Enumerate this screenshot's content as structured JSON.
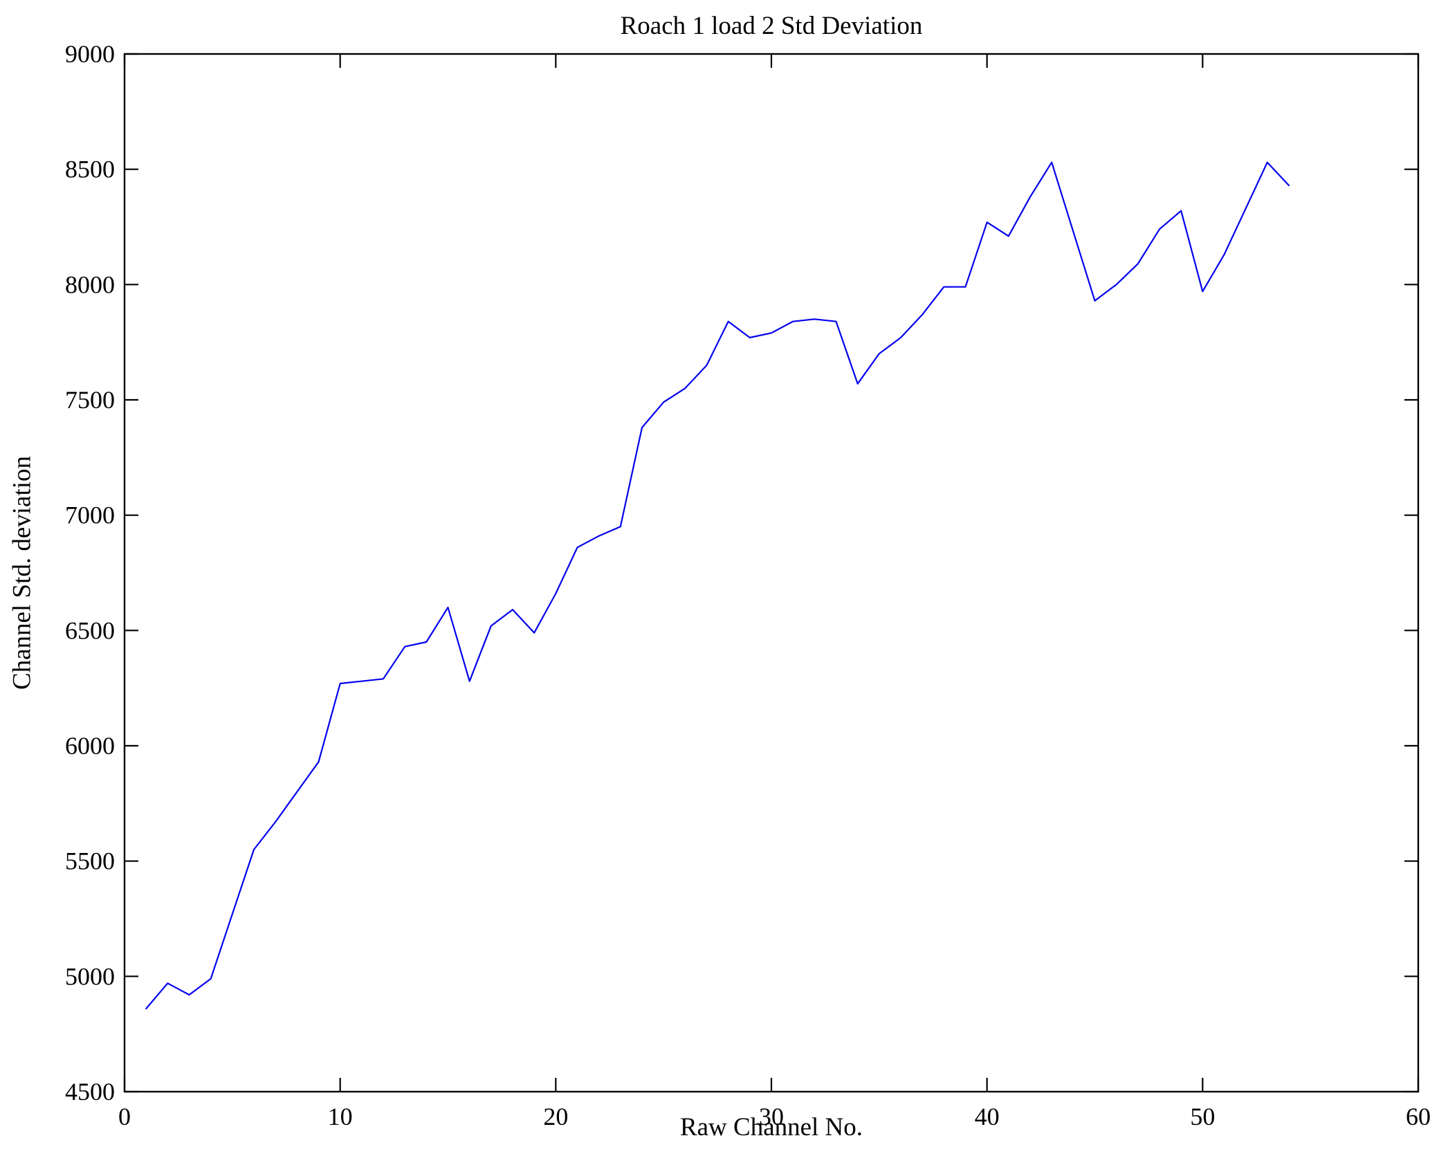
{
  "figure": {
    "background": "#ffffff",
    "axes_color": "#000000"
  },
  "chart_data": {
    "type": "line",
    "title": "Roach 1 load 2 Std Deviation",
    "xlabel": "Raw Channel No.",
    "ylabel": "Channel Std. deviation",
    "xlim": [
      0,
      60
    ],
    "ylim": [
      4500,
      9000
    ],
    "xticks": [
      0,
      10,
      20,
      30,
      40,
      50,
      60
    ],
    "yticks": [
      4500,
      5000,
      5500,
      6000,
      6500,
      7000,
      7500,
      8000,
      8500,
      9000
    ],
    "grid": false,
    "legend": null,
    "line_color": "#0000ee",
    "line_width": 2.2,
    "x": [
      1,
      2,
      3,
      4,
      5,
      6,
      7,
      8,
      9,
      10,
      11,
      12,
      13,
      14,
      15,
      16,
      17,
      18,
      19,
      20,
      21,
      22,
      23,
      24,
      25,
      26,
      27,
      28,
      29,
      30,
      31,
      32,
      33,
      34,
      35,
      36,
      37,
      38,
      39,
      40,
      41,
      42,
      43,
      44,
      45,
      46,
      47,
      48,
      49,
      50,
      51,
      52,
      53,
      54
    ],
    "y": [
      4860,
      4970,
      4920,
      4990,
      5270,
      5550,
      5670,
      5800,
      5930,
      6270,
      6280,
      6290,
      6430,
      6450,
      6600,
      6280,
      6520,
      6590,
      6490,
      6660,
      6860,
      6910,
      6950,
      7380,
      7490,
      7550,
      7650,
      7840,
      7770,
      7790,
      7840,
      7850,
      7840,
      7570,
      7700,
      7770,
      7870,
      7990,
      7990,
      8270,
      8210,
      8380,
      8530,
      8230,
      7930,
      8000,
      8090,
      8240,
      8320,
      7970,
      8130,
      8330,
      8530,
      8430
    ]
  }
}
